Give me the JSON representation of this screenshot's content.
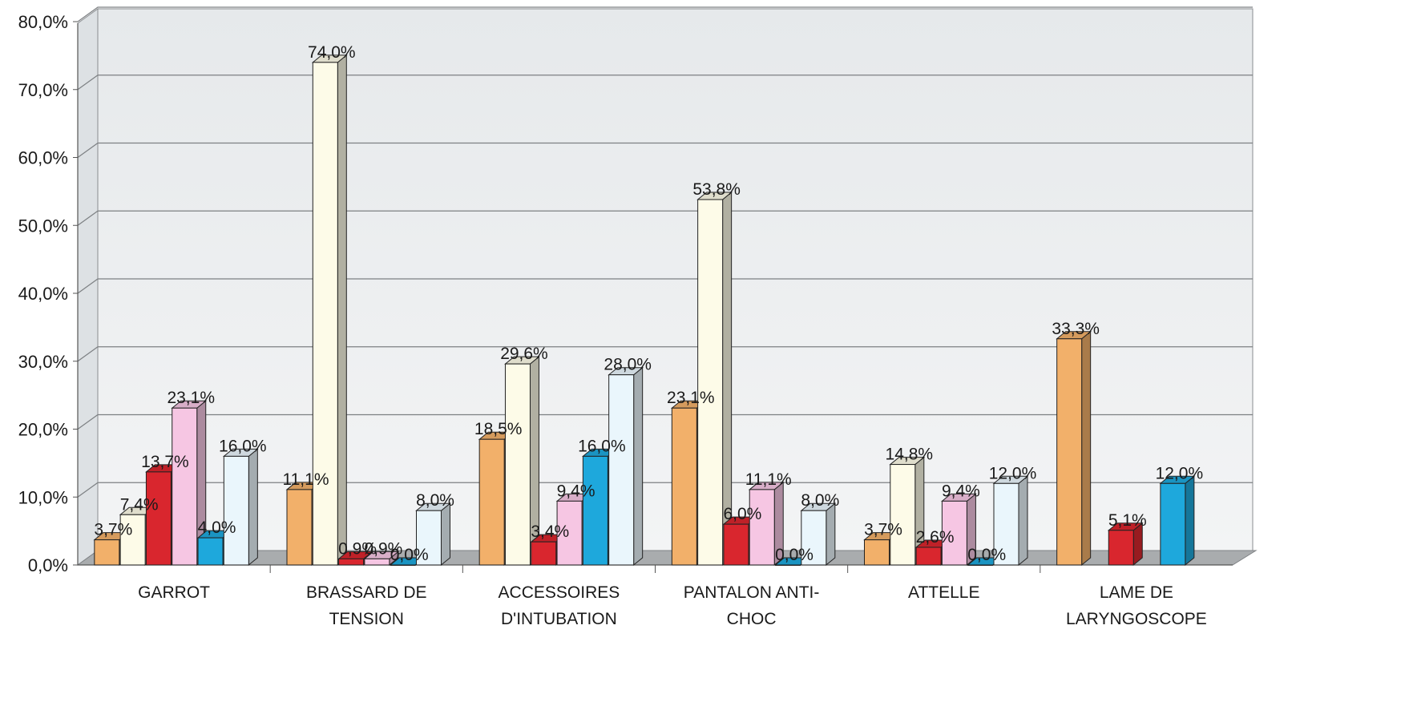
{
  "chart_data": {
    "type": "bar",
    "style": "3d-clustered-column",
    "categories": [
      [
        "GARROT"
      ],
      [
        "BRASSARD DE",
        "TENSION"
      ],
      [
        "ACCESSOIRES",
        "D'INTUBATION"
      ],
      [
        "PANTALON ANTI-",
        "CHOC"
      ],
      [
        "ATTELLE"
      ],
      [
        "LAME DE",
        "LARYNGOSCOPE"
      ]
    ],
    "series": [
      {
        "color": "#f2b06a",
        "values": [
          3.7,
          11.1,
          18.5,
          23.1,
          3.7,
          33.3
        ],
        "labels": [
          "3,7%",
          "11,1%",
          "18,5%",
          "23,1%",
          "3,7%",
          "33,3%"
        ]
      },
      {
        "color": "#fdfbe8",
        "values": [
          7.4,
          74.0,
          29.6,
          53.8,
          14.8,
          null
        ],
        "labels": [
          "7,4%",
          "74,0%",
          "29,6%",
          "53,8%",
          "14,8%",
          null
        ]
      },
      {
        "color": "#d9262e",
        "values": [
          13.7,
          0.9,
          3.4,
          6.0,
          2.6,
          5.1
        ],
        "labels": [
          "13,7%",
          "0,9%",
          "3,4%",
          "6,0%",
          "2,6%",
          "5,1%"
        ]
      },
      {
        "color": "#f6c6e3",
        "values": [
          23.1,
          0.9,
          9.4,
          11.1,
          9.4,
          null
        ],
        "labels": [
          "23,1%",
          "0,9%",
          "9,4%",
          "11,1%",
          "9,4%",
          null
        ]
      },
      {
        "color": "#1ea8dc",
        "values": [
          4.0,
          0.0,
          16.0,
          0.0,
          0.0,
          12.0
        ],
        "labels": [
          "4,0%",
          "0,0%",
          "16,0%",
          "0,0%",
          "0,0%",
          "12,0%"
        ]
      },
      {
        "color": "#eaf6fc",
        "values": [
          16.0,
          8.0,
          28.0,
          8.0,
          12.0,
          null
        ],
        "labels": [
          "16,0%",
          "8,0%",
          "28,0%",
          "8,0%",
          "12,0%",
          null
        ]
      }
    ],
    "y_ticks": [
      "0,0%",
      "10,0%",
      "20,0%",
      "30,0%",
      "40,0%",
      "50,0%",
      "60,0%",
      "70,0%",
      "80,0%"
    ],
    "ylim": [
      0,
      80
    ],
    "title": "",
    "xlabel": "",
    "ylabel": "",
    "grid": true,
    "legend": "none",
    "wall_color": "#eef0f1",
    "floor_color": "#a9acae"
  }
}
